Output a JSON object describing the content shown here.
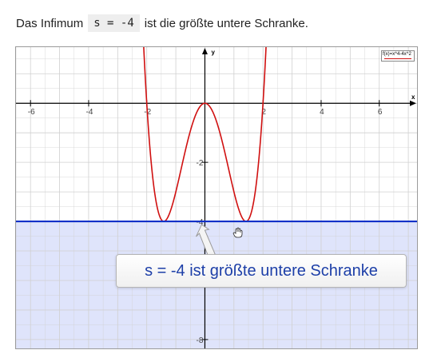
{
  "intro": {
    "before": "Das Infimum",
    "code": "s = -4",
    "after": "ist die größte untere Schranke."
  },
  "graph": {
    "xlabel": "x",
    "ylabel": "y",
    "x_ticks": [
      "-6",
      "-4",
      "-2",
      "2",
      "4",
      "6"
    ],
    "y_ticks": [
      "-2",
      "-4",
      "-8"
    ],
    "legend": "f(x)=x^4-4x^2",
    "tooltip": "s = -4 ist größte untere Schranke"
  },
  "chart_data": {
    "type": "line",
    "function": "x^4-4x^2",
    "xlim": [
      -6.5,
      7.3
    ],
    "ylim": [
      -8.3,
      1.9
    ],
    "grid": true,
    "series": [
      {
        "name": "f(x)=x^4-4x^2",
        "color": "#d01010",
        "kind": "curve"
      },
      {
        "name": "",
        "color": "#1030c8",
        "kind": "horizontal",
        "y": -4,
        "shade_below": true
      }
    ],
    "colors": {
      "curve": "#d01010",
      "bound": "#1030c8",
      "shade": "#dfe4fb",
      "grid": "#d0d0d0",
      "axis": "#000000",
      "tooltip_text": "#1d3fa8"
    }
  }
}
